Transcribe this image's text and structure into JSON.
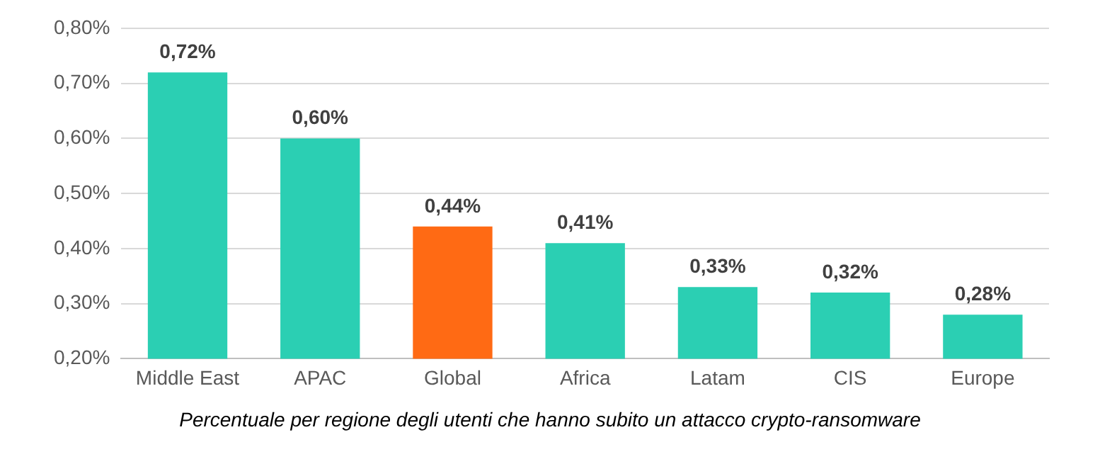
{
  "chart_data": {
    "type": "bar",
    "categories": [
      "Middle East",
      "APAC",
      "Global",
      "Africa",
      "Latam",
      "CIS",
      "Europe"
    ],
    "values": [
      0.72,
      0.6,
      0.44,
      0.41,
      0.33,
      0.32,
      0.28
    ],
    "colors": [
      "#2bcfb3",
      "#2bcfb3",
      "#ff6a14",
      "#2bcfb3",
      "#2bcfb3",
      "#2bcfb3",
      "#2bcfb3"
    ],
    "value_labels": [
      "0,72%",
      "0,60%",
      "0,44%",
      "0,41%",
      "0,33%",
      "0,32%",
      "0,28%"
    ],
    "ylim": [
      0.2,
      0.8
    ],
    "yticks": [
      {
        "value": 0.2,
        "label": "0,20%"
      },
      {
        "value": 0.3,
        "label": "0,30%"
      },
      {
        "value": 0.4,
        "label": "0,40%"
      },
      {
        "value": 0.5,
        "label": "0,50%"
      },
      {
        "value": 0.6,
        "label": "0,60%"
      },
      {
        "value": 0.7,
        "label": "0,70%"
      },
      {
        "value": 0.8,
        "label": "0,80%"
      }
    ],
    "grid": "y",
    "legend": false,
    "annotations": [
      "Percentuale per regione degli utenti che hanno subito un attacco crypto-ransomware"
    ]
  }
}
